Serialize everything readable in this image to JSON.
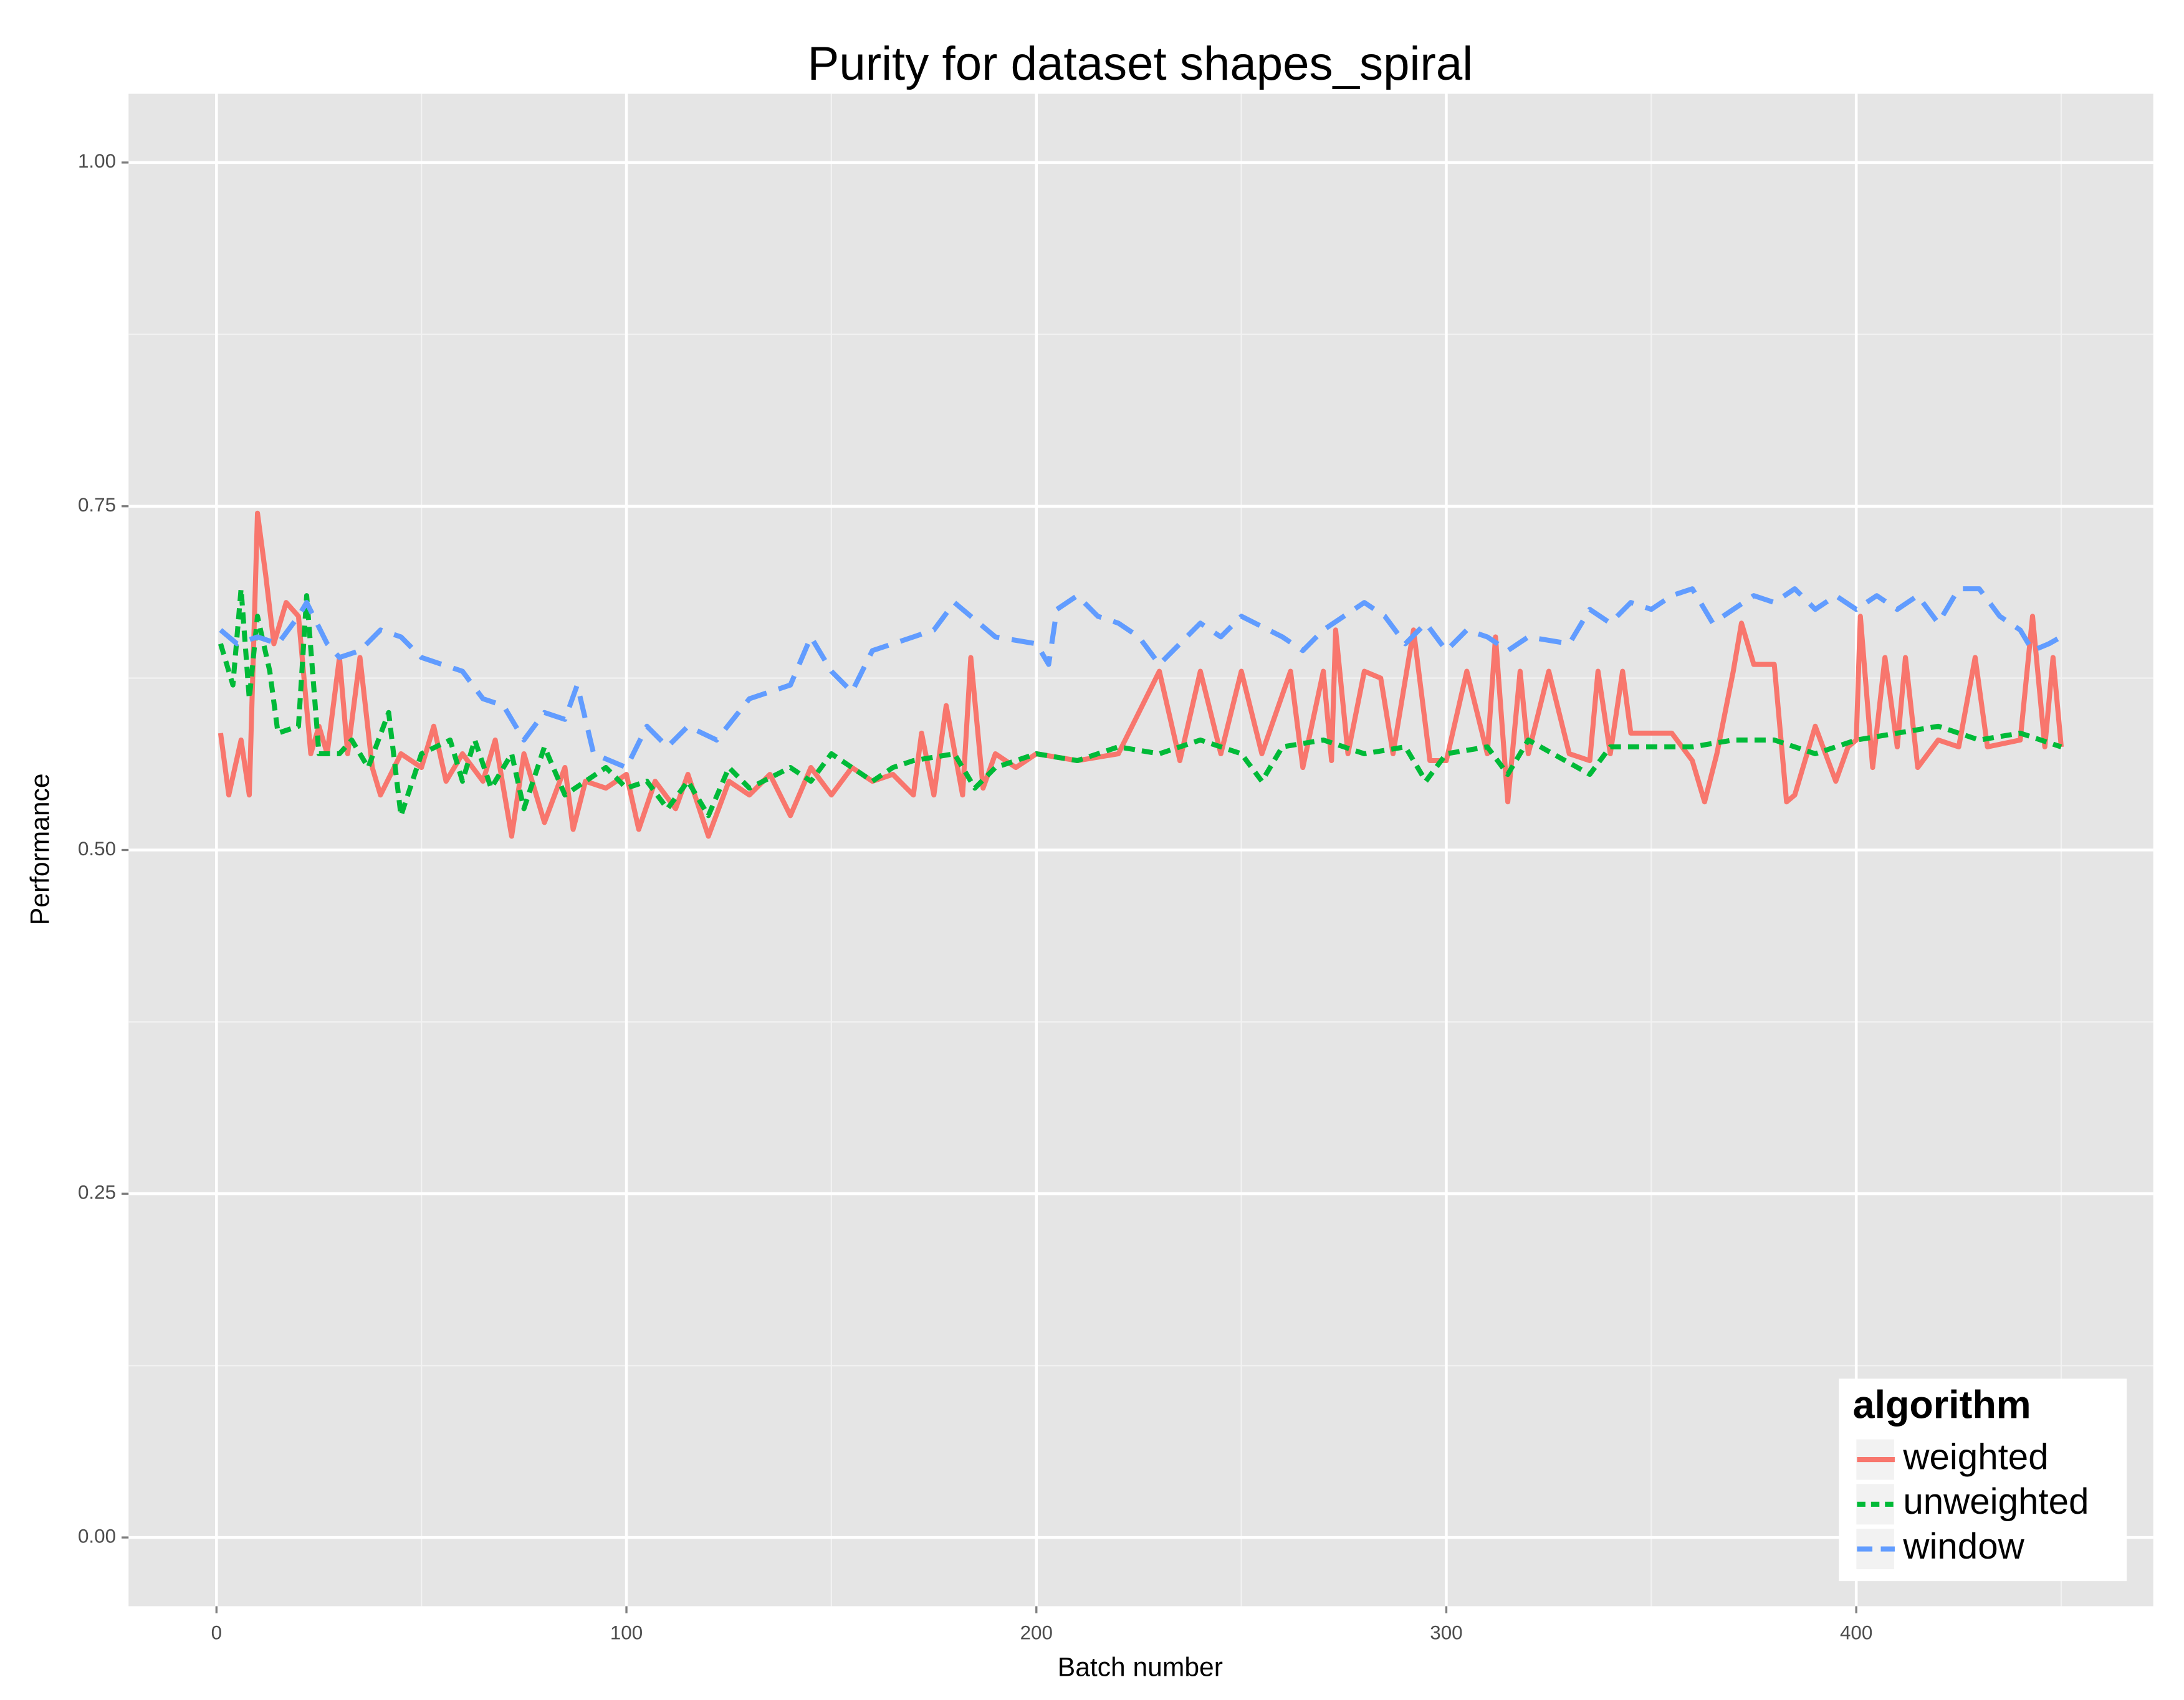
{
  "chart_data": {
    "type": "line",
    "title": "Purity for dataset shapes_spiral",
    "xlabel": "Batch number",
    "ylabel": "Performance",
    "xlim": [
      -21.45,
      472.45
    ],
    "ylim": [
      -0.05,
      1.05
    ],
    "xticks": [
      0,
      100,
      200,
      300,
      400
    ],
    "minor_xticks": [
      50,
      150,
      250,
      350,
      450
    ],
    "yticks": [
      {
        "value": 0,
        "label": "0.00"
      },
      {
        "value": 0.25,
        "label": "0.25"
      },
      {
        "value": 0.5,
        "label": "0.50"
      },
      {
        "value": 0.75,
        "label": "0.75"
      },
      {
        "value": 1,
        "label": "1.00"
      }
    ],
    "minor_yticks": [
      0.125,
      0.375,
      0.625,
      0.875
    ],
    "grid": true,
    "legend_title": "algorithm",
    "legend_corner": "bottom-right",
    "series": [
      {
        "name": "weighted",
        "color": "#f8766d",
        "linetype": "solid",
        "x": [
          1,
          3,
          6,
          8,
          10,
          12,
          14,
          17,
          20,
          23,
          25,
          27,
          30,
          32,
          35,
          38,
          40,
          45,
          50,
          53,
          56,
          60,
          65,
          68,
          72,
          75,
          80,
          85,
          87,
          90,
          95,
          100,
          103,
          107,
          112,
          115,
          120,
          125,
          130,
          135,
          140,
          145,
          150,
          155,
          160,
          165,
          170,
          172,
          175,
          178,
          182,
          184,
          187,
          190,
          195,
          200,
          210,
          220,
          230,
          235,
          240,
          245,
          250,
          255,
          262,
          265,
          270,
          272,
          273,
          276,
          280,
          284,
          287,
          292,
          296,
          300,
          305,
          310,
          312,
          315,
          318,
          320,
          325,
          330,
          335,
          337,
          340,
          343,
          345,
          350,
          355,
          360,
          363,
          366,
          370,
          372,
          375,
          380,
          383,
          385,
          390,
          395,
          398,
          400,
          401,
          404,
          407,
          410,
          412,
          415,
          420,
          425,
          429,
          432,
          440,
          443,
          446,
          448,
          450
        ],
        "values": [
          0.585,
          0.54,
          0.58,
          0.54,
          0.745,
          0.7,
          0.65,
          0.68,
          0.67,
          0.57,
          0.59,
          0.57,
          0.64,
          0.57,
          0.64,
          0.56,
          0.54,
          0.57,
          0.56,
          0.59,
          0.55,
          0.57,
          0.55,
          0.58,
          0.51,
          0.57,
          0.52,
          0.56,
          0.515,
          0.55,
          0.545,
          0.555,
          0.515,
          0.55,
          0.53,
          0.555,
          0.51,
          0.55,
          0.54,
          0.555,
          0.525,
          0.56,
          0.54,
          0.56,
          0.55,
          0.555,
          0.54,
          0.585,
          0.54,
          0.605,
          0.54,
          0.64,
          0.545,
          0.57,
          0.56,
          0.57,
          0.565,
          0.57,
          0.63,
          0.565,
          0.63,
          0.57,
          0.63,
          0.57,
          0.63,
          0.56,
          0.63,
          0.565,
          0.66,
          0.57,
          0.63,
          0.625,
          0.57,
          0.66,
          0.565,
          0.565,
          0.63,
          0.57,
          0.655,
          0.535,
          0.63,
          0.57,
          0.63,
          0.57,
          0.565,
          0.63,
          0.57,
          0.63,
          0.585,
          0.585,
          0.585,
          0.565,
          0.535,
          0.57,
          0.63,
          0.665,
          0.635,
          0.635,
          0.535,
          0.54,
          0.59,
          0.55,
          0.575,
          0.58,
          0.67,
          0.56,
          0.64,
          0.575,
          0.64,
          0.56,
          0.58,
          0.575,
          0.64,
          0.575,
          0.58,
          0.67,
          0.575,
          0.64,
          0.575
        ]
      },
      {
        "name": "unweighted",
        "color": "#00ba38",
        "linetype": "dotted",
        "x": [
          1,
          4,
          6,
          8,
          10,
          13,
          15,
          20,
          22,
          25,
          30,
          33,
          37,
          42,
          45,
          50,
          57,
          60,
          63,
          67,
          72,
          75,
          80,
          85,
          90,
          95,
          100,
          105,
          110,
          115,
          120,
          125,
          130,
          140,
          145,
          150,
          160,
          165,
          170,
          180,
          185,
          190,
          200,
          210,
          220,
          230,
          240,
          250,
          255,
          260,
          270,
          280,
          290,
          295,
          300,
          310,
          315,
          320,
          335,
          340,
          360,
          370,
          380,
          390,
          400,
          410,
          420,
          430,
          440,
          450
        ],
        "values": [
          0.65,
          0.62,
          0.69,
          0.61,
          0.67,
          0.63,
          0.585,
          0.59,
          0.685,
          0.57,
          0.57,
          0.58,
          0.56,
          0.6,
          0.525,
          0.57,
          0.58,
          0.55,
          0.58,
          0.545,
          0.57,
          0.53,
          0.575,
          0.54,
          0.55,
          0.56,
          0.545,
          0.55,
          0.53,
          0.55,
          0.525,
          0.56,
          0.545,
          0.56,
          0.55,
          0.57,
          0.55,
          0.56,
          0.565,
          0.57,
          0.545,
          0.56,
          0.57,
          0.565,
          0.575,
          0.57,
          0.58,
          0.57,
          0.55,
          0.575,
          0.58,
          0.57,
          0.575,
          0.55,
          0.57,
          0.575,
          0.555,
          0.58,
          0.555,
          0.575,
          0.575,
          0.58,
          0.58,
          0.57,
          0.58,
          0.585,
          0.59,
          0.58,
          0.585,
          0.575
        ]
      },
      {
        "name": "window",
        "color": "#619cff",
        "linetype": "dashed",
        "x": [
          1,
          5,
          10,
          15,
          20,
          22,
          27,
          30,
          35,
          40,
          45,
          50,
          60,
          65,
          70,
          75,
          80,
          85,
          88,
          92,
          100,
          105,
          110,
          115,
          122,
          130,
          140,
          145,
          150,
          155,
          160,
          170,
          175,
          180,
          190,
          200,
          203,
          205,
          210,
          215,
          220,
          225,
          230,
          235,
          240,
          245,
          250,
          260,
          265,
          270,
          280,
          285,
          290,
          295,
          300,
          305,
          310,
          315,
          320,
          330,
          335,
          340,
          345,
          350,
          355,
          360,
          365,
          370,
          375,
          380,
          385,
          390,
          395,
          400,
          405,
          410,
          415,
          420,
          425,
          430,
          435,
          440,
          443,
          447,
          450
        ],
        "values": [
          0.66,
          0.65,
          0.655,
          0.65,
          0.67,
          0.68,
          0.65,
          0.64,
          0.645,
          0.66,
          0.655,
          0.64,
          0.63,
          0.61,
          0.605,
          0.58,
          0.6,
          0.595,
          0.62,
          0.57,
          0.56,
          0.59,
          0.575,
          0.59,
          0.58,
          0.61,
          0.62,
          0.655,
          0.63,
          0.615,
          0.645,
          0.655,
          0.66,
          0.68,
          0.655,
          0.65,
          0.635,
          0.675,
          0.685,
          0.67,
          0.665,
          0.655,
          0.635,
          0.65,
          0.665,
          0.655,
          0.67,
          0.655,
          0.645,
          0.66,
          0.68,
          0.67,
          0.65,
          0.665,
          0.645,
          0.66,
          0.655,
          0.645,
          0.655,
          0.65,
          0.675,
          0.665,
          0.68,
          0.675,
          0.685,
          0.69,
          0.665,
          0.675,
          0.685,
          0.68,
          0.69,
          0.675,
          0.685,
          0.675,
          0.685,
          0.675,
          0.685,
          0.665,
          0.69,
          0.69,
          0.67,
          0.66,
          0.645,
          0.65,
          0.655
        ]
      }
    ]
  }
}
